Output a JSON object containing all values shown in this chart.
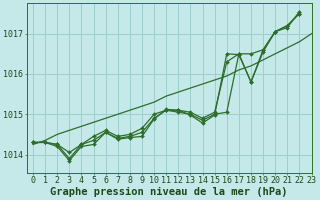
{
  "background_color": "#c5e8e8",
  "grid_color": "#9ecece",
  "line_color": "#2d6e2d",
  "title": "Graphe pression niveau de la mer (hPa)",
  "xlim": [
    -0.5,
    23
  ],
  "ylim": [
    1013.55,
    1017.75
  ],
  "yticks": [
    1014,
    1015,
    1016,
    1017
  ],
  "xticks": [
    0,
    1,
    2,
    3,
    4,
    5,
    6,
    7,
    8,
    9,
    10,
    11,
    12,
    13,
    14,
    15,
    16,
    17,
    18,
    19,
    20,
    21,
    22,
    23
  ],
  "title_fontsize": 7.5,
  "tick_fontsize": 6,
  "line1": [
    1014.3,
    1014.3,
    1014.25,
    1013.9,
    1014.25,
    1014.35,
    1014.55,
    1014.4,
    1014.45,
    1014.55,
    1014.9,
    1015.1,
    1015.05,
    1015.0,
    1014.85,
    1015.0,
    1015.05,
    1016.5,
    1015.8,
    1016.6,
    1017.05,
    1017.2,
    1017.5
  ],
  "line2": [
    1014.3,
    1014.3,
    1014.25,
    1014.05,
    1014.25,
    1014.45,
    1014.6,
    1014.45,
    1014.5,
    1014.65,
    1015.0,
    1015.1,
    1015.1,
    1015.05,
    1014.9,
    1015.05,
    1016.3,
    1016.5,
    1016.5,
    1016.6,
    1017.05,
    1017.2,
    1017.5
  ],
  "line3_straight": [
    1014.25,
    1014.35,
    1014.5,
    1014.6,
    1014.7,
    1014.8,
    1014.9,
    1015.0,
    1015.1,
    1015.2,
    1015.3,
    1015.45,
    1015.55,
    1015.65,
    1015.75,
    1015.85,
    1015.95,
    1016.1,
    1016.2,
    1016.35,
    1016.5,
    1016.65,
    1016.8,
    1017.0
  ],
  "line4_zigzag": [
    1014.3,
    1014.3,
    1014.2,
    1013.85,
    1014.2,
    1014.25,
    1014.55,
    1014.38,
    1014.42,
    1014.45,
    1014.88,
    1015.12,
    1015.1,
    1014.98,
    1014.78,
    1014.98,
    1016.5,
    1016.48,
    1015.8,
    1016.55,
    1017.05,
    1017.15,
    1017.55
  ]
}
